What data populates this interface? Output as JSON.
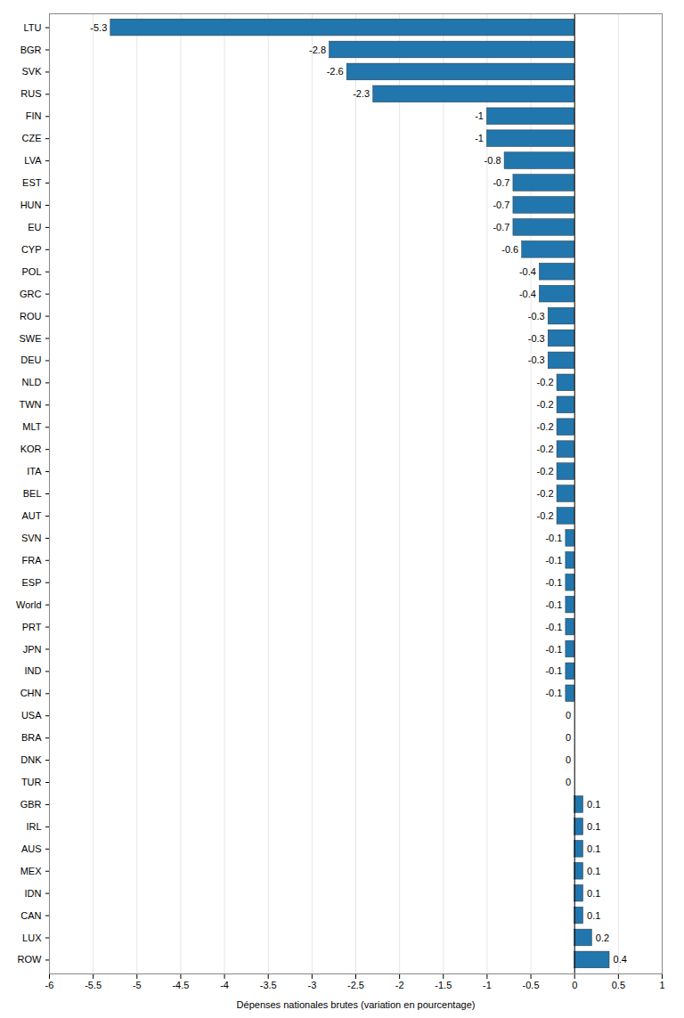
{
  "chart_data": {
    "type": "bar",
    "orientation": "horizontal",
    "categories": [
      "LTU",
      "BGR",
      "SVK",
      "RUS",
      "FIN",
      "CZE",
      "LVA",
      "EST",
      "HUN",
      "EU",
      "CYP",
      "POL",
      "GRC",
      "ROU",
      "SWE",
      "DEU",
      "NLD",
      "TWN",
      "MLT",
      "KOR",
      "ITA",
      "BEL",
      "AUT",
      "SVN",
      "FRA",
      "ESP",
      "World",
      "PRT",
      "JPN",
      "IND",
      "CHN",
      "USA",
      "BRA",
      "DNK",
      "TUR",
      "GBR",
      "IRL",
      "AUS",
      "MEX",
      "IDN",
      "CAN",
      "LUX",
      "ROW"
    ],
    "values": [
      -5.3,
      -2.8,
      -2.6,
      -2.3,
      -1.0,
      -1.0,
      -0.8,
      -0.7,
      -0.7,
      -0.7,
      -0.6,
      -0.4,
      -0.4,
      -0.3,
      -0.3,
      -0.3,
      -0.2,
      -0.2,
      -0.2,
      -0.2,
      -0.2,
      -0.2,
      -0.2,
      -0.1,
      -0.1,
      -0.1,
      -0.1,
      -0.1,
      -0.1,
      -0.1,
      -0.1,
      0.0,
      0.0,
      0.0,
      0.0,
      0.1,
      0.1,
      0.1,
      0.1,
      0.1,
      0.1,
      0.2,
      0.4
    ],
    "color": "#2176ae",
    "xlabel": "Dépenses nationales brutes (variation en pourcentage)",
    "xlim": [
      -6,
      1
    ],
    "xticks": [
      -6,
      -5.5,
      -5,
      -4.5,
      -4,
      -3.5,
      -3,
      -2.5,
      -2,
      -1.5,
      -1,
      -0.5,
      0,
      0.5,
      1
    ],
    "grid": true,
    "data_labels": true
  }
}
